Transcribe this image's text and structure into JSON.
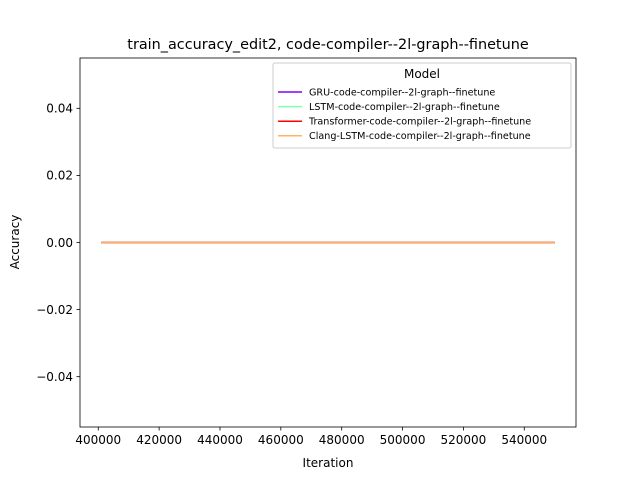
{
  "chart_data": {
    "type": "line",
    "title": "train_accuracy_edit2, code-compiler--2l-graph--finetune",
    "xlabel": "Iteration",
    "ylabel": "Accuracy",
    "xlim": [
      394000,
      557000
    ],
    "ylim": [
      -0.055,
      0.055
    ],
    "xticks": [
      400000,
      420000,
      440000,
      460000,
      480000,
      500000,
      520000,
      540000
    ],
    "yticks": [
      -0.04,
      -0.02,
      0.0,
      0.02,
      0.04
    ],
    "xtick_labels": [
      "400000",
      "420000",
      "440000",
      "460000",
      "480000",
      "500000",
      "520000",
      "540000"
    ],
    "ytick_labels": [
      "−0.04",
      "−0.02",
      "0.00",
      "0.02",
      "0.04"
    ],
    "grid": false,
    "legend": {
      "title": "Model",
      "placement": "top-right"
    },
    "series": [
      {
        "name": "GRU-code-compiler--2l-graph--finetune",
        "color": "#8000ff",
        "x": [
          401000,
          550000
        ],
        "y": [
          0.0,
          0.0
        ]
      },
      {
        "name": "LSTM-code-compiler--2l-graph--finetune",
        "color": "#80ffb4",
        "x": [
          401000,
          550000
        ],
        "y": [
          0.0,
          0.0
        ]
      },
      {
        "name": "Transformer-code-compiler--2l-graph--finetune",
        "color": "#ff0000",
        "x": [
          401000,
          550000
        ],
        "y": [
          0.0,
          0.0
        ]
      },
      {
        "name": "Clang-LSTM-code-compiler--2l-graph--finetune",
        "color": "#ffb360",
        "x": [
          401000,
          550000
        ],
        "y": [
          0.0,
          0.0
        ]
      }
    ]
  }
}
